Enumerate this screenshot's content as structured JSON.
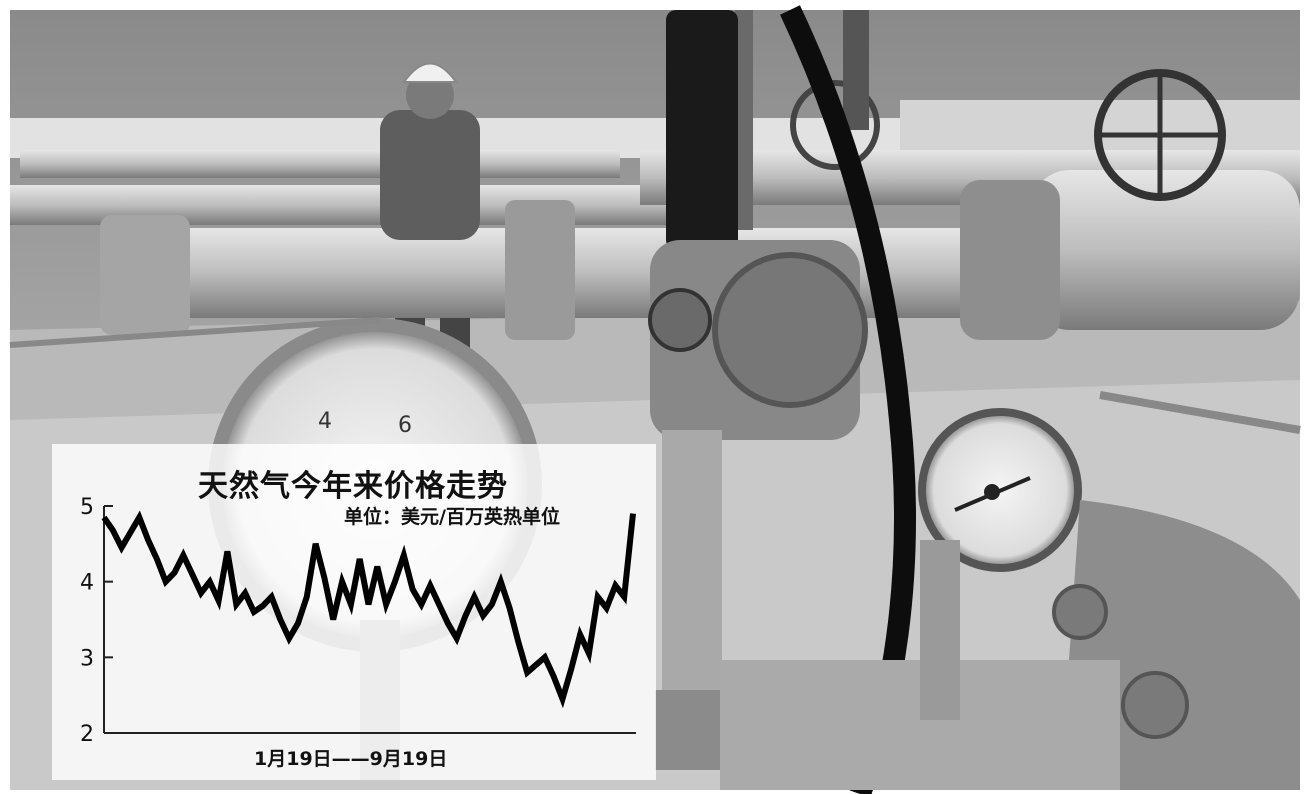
{
  "photo": {
    "description_icon": "natural-gas-pipeline-photo"
  },
  "chart_data": {
    "type": "line",
    "title": "天然气今年来价格走势",
    "unit_label": "单位：美元/百万英热单位",
    "x_range_label": "1月19日——9月19日",
    "x_start": "1月19日",
    "x_end": "9月19日",
    "ylim": [
      2,
      5
    ],
    "yticks": [
      5,
      4,
      3,
      2
    ],
    "grid": false,
    "series": [
      {
        "values": [
          4.85,
          4.68,
          4.45,
          4.65,
          4.85,
          4.55,
          4.3,
          4.0,
          4.12,
          4.35,
          4.1,
          3.85,
          4.0,
          3.75,
          4.4,
          3.7,
          3.85,
          3.6,
          3.68,
          3.8,
          3.5,
          3.25,
          3.45,
          3.8,
          4.5,
          4.05,
          3.5,
          4.0,
          3.7,
          4.3,
          3.7,
          4.2,
          3.7,
          4.0,
          4.35,
          3.9,
          3.7,
          3.95,
          3.7,
          3.45,
          3.25,
          3.55,
          3.8,
          3.55,
          3.7,
          4.0,
          3.65,
          3.2,
          2.8,
          2.9,
          3.0,
          2.75,
          2.45,
          2.85,
          3.3,
          3.05,
          3.8,
          3.65,
          3.95,
          3.8,
          4.9
        ]
      }
    ]
  }
}
